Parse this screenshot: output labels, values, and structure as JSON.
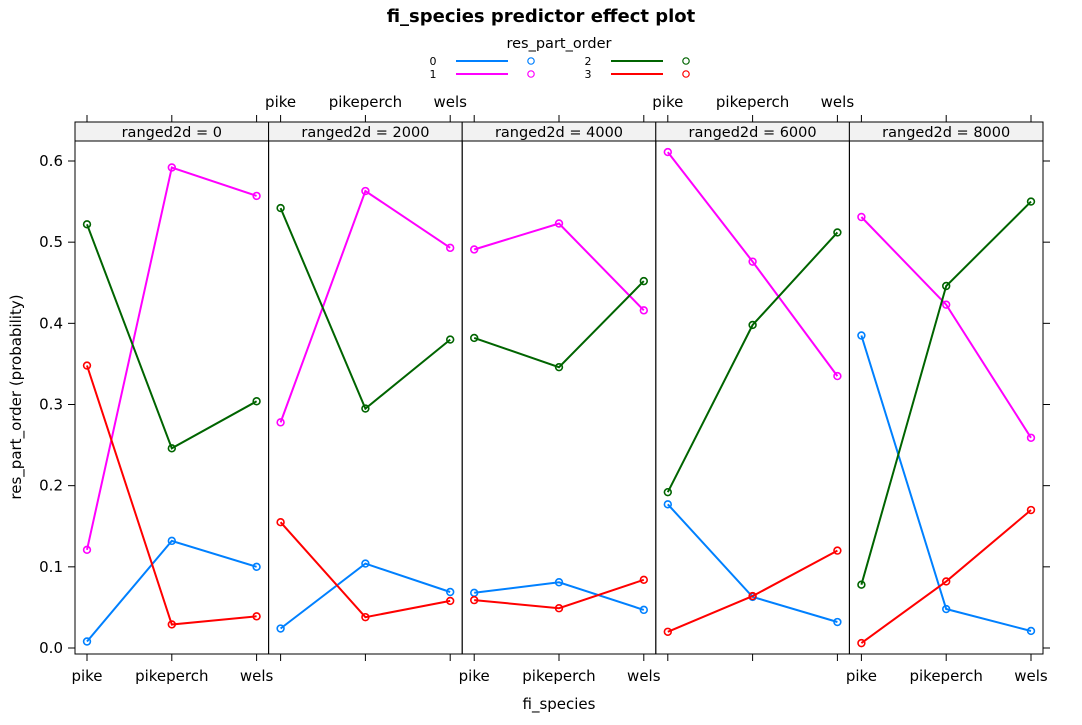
{
  "chart_data": {
    "type": "line",
    "title": "fi_species predictor effect plot",
    "xlabel": "fi_species",
    "ylabel": "res_part_order (probability)",
    "legend_title": "res_part_order",
    "legend_position": "top",
    "grid": false,
    "categories": [
      "pike",
      "pikeperch",
      "wels"
    ],
    "ylim": [
      0,
      0.62
    ],
    "yticks": [
      0.0,
      0.1,
      0.2,
      0.3,
      0.4,
      0.5,
      0.6
    ],
    "ytick_labels": [
      "0.0",
      "0.1",
      "0.2",
      "0.3",
      "0.4",
      "0.5",
      "0.6"
    ],
    "series_colors": {
      "0": "#0080ff",
      "1": "#ff00ff",
      "2": "#006400",
      "3": "#ff0000"
    },
    "legend": [
      {
        "name": "0",
        "color": "#0080ff"
      },
      {
        "name": "1",
        "color": "#ff00ff"
      },
      {
        "name": "2",
        "color": "#006400"
      },
      {
        "name": "3",
        "color": "#ff0000"
      }
    ],
    "panels": [
      {
        "label": "ranged2d = 0",
        "series": [
          {
            "name": "0",
            "values": [
              0.008,
              0.132,
              0.1
            ]
          },
          {
            "name": "1",
            "values": [
              0.121,
              0.592,
              0.557
            ]
          },
          {
            "name": "2",
            "values": [
              0.522,
              0.246,
              0.304
            ]
          },
          {
            "name": "3",
            "values": [
              0.348,
              0.029,
              0.039
            ]
          }
        ]
      },
      {
        "label": "ranged2d = 2000",
        "series": [
          {
            "name": "0",
            "values": [
              0.024,
              0.104,
              0.069
            ]
          },
          {
            "name": "1",
            "values": [
              0.278,
              0.563,
              0.493
            ]
          },
          {
            "name": "2",
            "values": [
              0.542,
              0.295,
              0.38
            ]
          },
          {
            "name": "3",
            "values": [
              0.155,
              0.038,
              0.058
            ]
          }
        ]
      },
      {
        "label": "ranged2d = 4000",
        "series": [
          {
            "name": "0",
            "values": [
              0.068,
              0.081,
              0.047
            ]
          },
          {
            "name": "1",
            "values": [
              0.491,
              0.523,
              0.416
            ]
          },
          {
            "name": "2",
            "values": [
              0.382,
              0.346,
              0.452
            ]
          },
          {
            "name": "3",
            "values": [
              0.059,
              0.049,
              0.084
            ]
          }
        ]
      },
      {
        "label": "ranged2d = 6000",
        "series": [
          {
            "name": "0",
            "values": [
              0.177,
              0.063,
              0.032
            ]
          },
          {
            "name": "1",
            "values": [
              0.611,
              0.476,
              0.335
            ]
          },
          {
            "name": "2",
            "values": [
              0.192,
              0.398,
              0.512
            ]
          },
          {
            "name": "3",
            "values": [
              0.02,
              0.064,
              0.12
            ]
          }
        ]
      },
      {
        "label": "ranged2d = 8000",
        "series": [
          {
            "name": "0",
            "values": [
              0.385,
              0.048,
              0.021
            ]
          },
          {
            "name": "1",
            "values": [
              0.531,
              0.423,
              0.259
            ]
          },
          {
            "name": "2",
            "values": [
              0.078,
              0.446,
              0.55
            ]
          },
          {
            "name": "3",
            "values": [
              0.006,
              0.082,
              0.17
            ]
          }
        ]
      }
    ]
  }
}
